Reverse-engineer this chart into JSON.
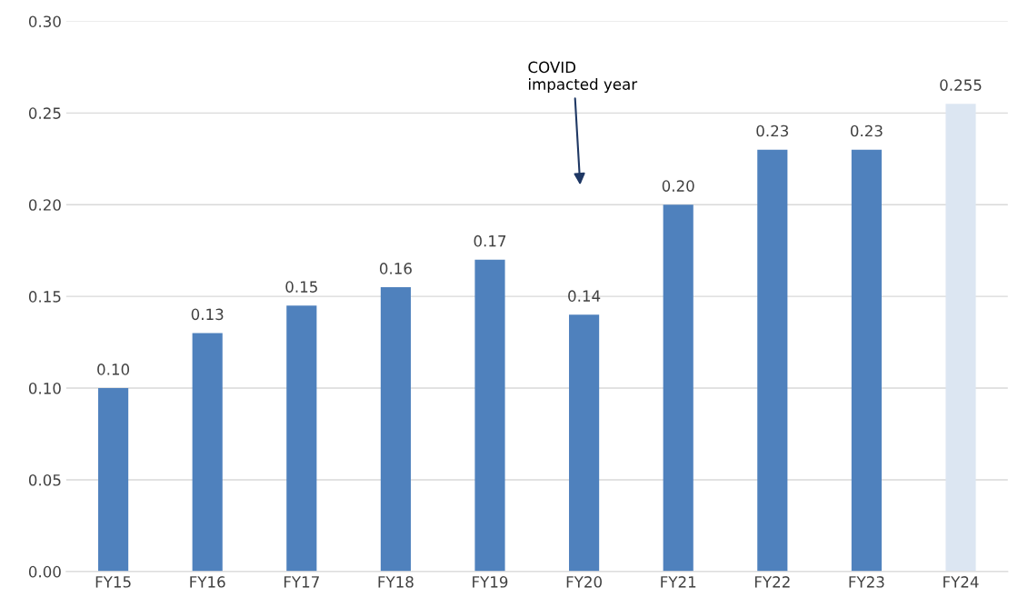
{
  "chart_data": {
    "type": "bar",
    "categories": [
      "FY15",
      "FY16",
      "FY17",
      "FY18",
      "FY19",
      "FY20",
      "FY21",
      "FY22",
      "FY23",
      "FY24"
    ],
    "values": [
      0.1,
      0.13,
      0.145,
      0.155,
      0.17,
      0.14,
      0.2,
      0.23,
      0.23,
      0.255
    ],
    "value_labels": [
      "0.10",
      "0.13",
      "0.15",
      "0.16",
      "0.17",
      "0.14",
      "0.20",
      "0.23",
      "0.23",
      "0.255"
    ],
    "colors": [
      "#4f81bd",
      "#4f81bd",
      "#4f81bd",
      "#4f81bd",
      "#4f81bd",
      "#4f81bd",
      "#4f81bd",
      "#4f81bd",
      "#4f81bd",
      "#dce6f2"
    ],
    "annotations": [
      "COVID\nimpacted year"
    ],
    "ylim": [
      0,
      0.3
    ],
    "yticks": [
      "0.00",
      "0.05",
      "0.10",
      "0.15",
      "0.20",
      "0.25",
      "0.30"
    ],
    "grid": "y",
    "legend": false
  }
}
